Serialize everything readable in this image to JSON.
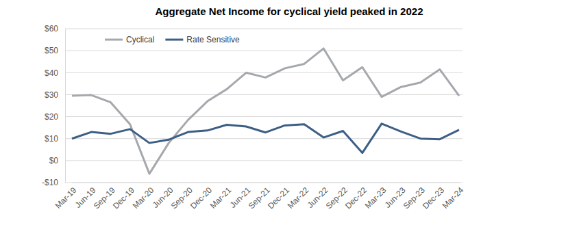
{
  "chart_data": {
    "type": "line",
    "title": "Aggregate Net Income for cyclical yield peaked in 2022",
    "categories": [
      "Mar-19",
      "Jun-19",
      "Sep-19",
      "Dec-19",
      "Mar-20",
      "Jun-20",
      "Sep-20",
      "Dec-20",
      "Mar-21",
      "Jun-21",
      "Sep-21",
      "Dec-21",
      "Mar-22",
      "Jun-22",
      "Sep-22",
      "Dec-22",
      "Mar-23",
      "Jun-23",
      "Sep-23",
      "Dec-23",
      "Mar-24"
    ],
    "series": [
      {
        "name": "Cyclical",
        "color": "#a5a8ac",
        "values": [
          29.5,
          29.8,
          26.5,
          16.5,
          -6,
          8,
          18.5,
          27,
          32.5,
          40,
          37.8,
          42,
          44,
          51,
          36.5,
          42.5,
          29,
          33.5,
          35.5,
          41.5,
          29.5
        ]
      },
      {
        "name": "Rate Sensitive",
        "color": "#3d5f85",
        "values": [
          10,
          13,
          12.2,
          14.3,
          8,
          9.5,
          13,
          13.7,
          16.3,
          15.5,
          12.8,
          16,
          16.5,
          10.5,
          13.5,
          3.5,
          16.8,
          13.2,
          10,
          9.7,
          14
        ]
      }
    ],
    "ylim": [
      -10,
      60
    ],
    "yticks": [
      {
        "value": -10,
        "label": "-$10"
      },
      {
        "value": 0,
        "label": "$0"
      },
      {
        "value": 10,
        "label": "$10"
      },
      {
        "value": 20,
        "label": "$20"
      },
      {
        "value": 30,
        "label": "$30"
      },
      {
        "value": 40,
        "label": "$40"
      },
      {
        "value": 50,
        "label": "$50"
      },
      {
        "value": 60,
        "label": "$60"
      }
    ],
    "grid": true,
    "legend": "top-left"
  }
}
